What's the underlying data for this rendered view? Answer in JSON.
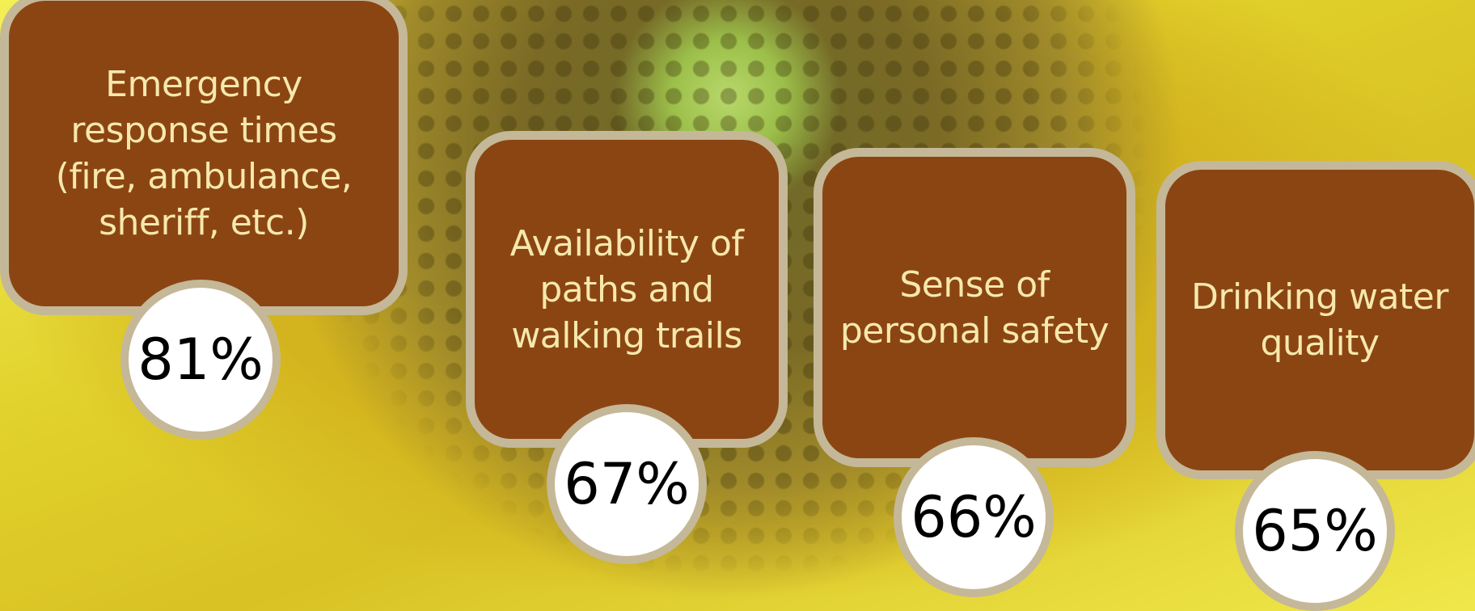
{
  "items": [
    {
      "label_lines": [
        "Emergency",
        "response times",
        "(fire, ambulance,",
        "sheriff, etc.)"
      ],
      "value": "81%"
    },
    {
      "label_lines": [
        "Availability of",
        "paths and",
        "walking trails"
      ],
      "value": "67%"
    },
    {
      "label_lines": [
        "Sense of",
        "personal safety"
      ],
      "value": "66%"
    },
    {
      "label_lines": [
        "Drinking water",
        "quality"
      ],
      "value": "65%"
    }
  ]
}
